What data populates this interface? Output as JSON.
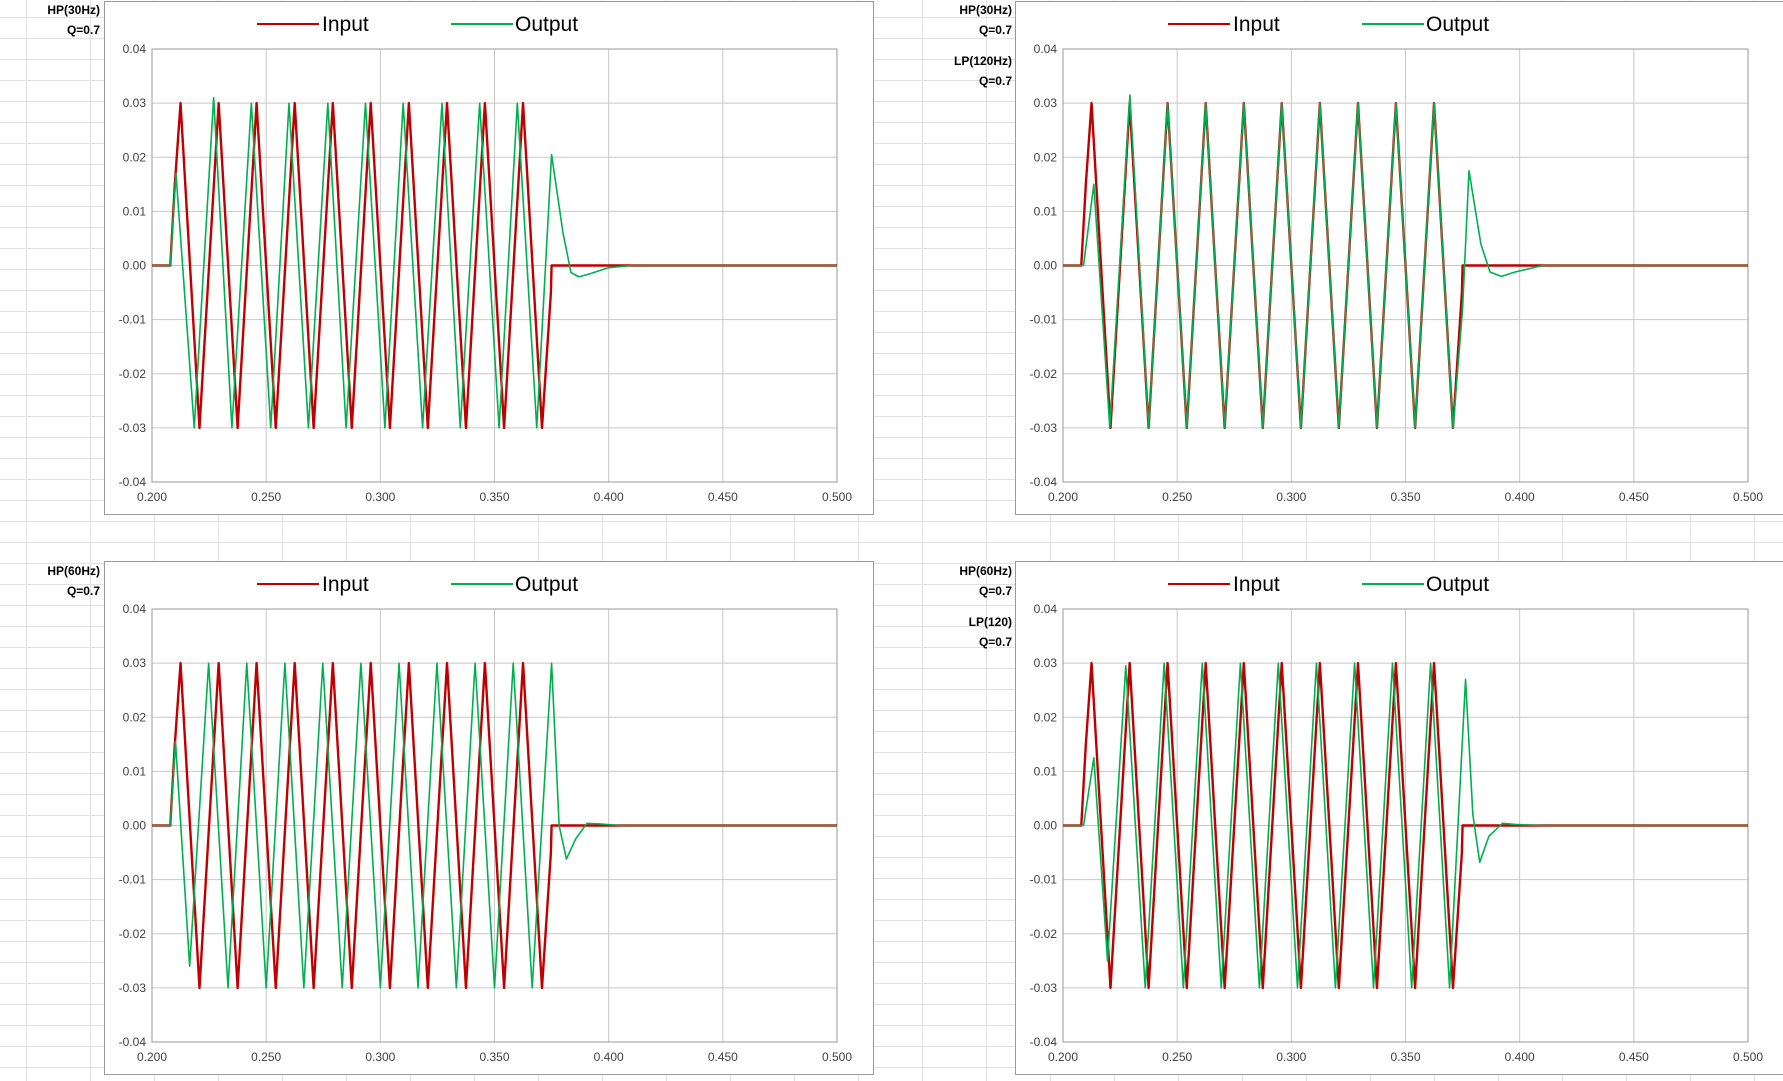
{
  "colors": {
    "input": "#c00000",
    "output": "#00b050",
    "grid": "#c8c8c8",
    "axis": "#9a9a9a"
  },
  "panels": [
    {
      "labels": [
        "HP(30Hz)",
        "Q=0.7"
      ]
    },
    {
      "labels": [
        "HP(30Hz)",
        "Q=0.7",
        "LP(120Hz)",
        "Q=0.7"
      ]
    },
    {
      "labels": [
        "HP(60Hz)",
        "Q=0.7"
      ]
    },
    {
      "labels": [
        "HP(60Hz)",
        "Q=0.7",
        "LP(120)",
        "Q=0.7"
      ]
    }
  ],
  "chart_data": [
    {
      "type": "line",
      "legend": "top",
      "grid": true,
      "xlim": [
        0.2,
        0.5
      ],
      "ylim": [
        -0.04,
        0.04
      ],
      "x_ticks": [
        "0.200",
        "0.250",
        "0.300",
        "0.350",
        "0.400",
        "0.450",
        "0.500"
      ],
      "y_ticks": [
        "0.04",
        "0.03",
        "0.02",
        "0.01",
        "0.00",
        "-0.01",
        "-0.02",
        "-0.03",
        "-0.04"
      ],
      "series": [
        {
          "name": "Input",
          "color": "#c00000",
          "points": [
            [
              0.2,
              0.0
            ],
            [
              0.208,
              0.0
            ],
            [
              0.21,
              0.015
            ],
            [
              0.2125,
              0.03
            ],
            [
              0.2208,
              -0.03
            ],
            [
              0.2292,
              0.03
            ],
            [
              0.2375,
              -0.03
            ],
            [
              0.2458,
              0.03
            ],
            [
              0.2542,
              -0.03
            ],
            [
              0.2625,
              0.03
            ],
            [
              0.2708,
              -0.03
            ],
            [
              0.2792,
              0.03
            ],
            [
              0.2875,
              -0.03
            ],
            [
              0.2958,
              0.03
            ],
            [
              0.3042,
              -0.03
            ],
            [
              0.3125,
              0.03
            ],
            [
              0.3208,
              -0.03
            ],
            [
              0.3292,
              0.03
            ],
            [
              0.3375,
              -0.03
            ],
            [
              0.3458,
              0.03
            ],
            [
              0.3542,
              -0.03
            ],
            [
              0.3625,
              0.03
            ],
            [
              0.3708,
              -0.03
            ],
            [
              0.3747,
              -0.005
            ],
            [
              0.375,
              0.0
            ],
            [
              0.5,
              0.0
            ]
          ]
        },
        {
          "name": "Output",
          "color": "#00b050",
          "points": [
            [
              0.2,
              0.0
            ],
            [
              0.208,
              0.0
            ],
            [
              0.2105,
              0.017
            ],
            [
              0.2185,
              -0.03
            ],
            [
              0.227,
              0.031
            ],
            [
              0.235,
              -0.03
            ],
            [
              0.2435,
              0.03
            ],
            [
              0.252,
              -0.03
            ],
            [
              0.26,
              0.03
            ],
            [
              0.2685,
              -0.03
            ],
            [
              0.277,
              0.03
            ],
            [
              0.285,
              -0.03
            ],
            [
              0.2935,
              0.03
            ],
            [
              0.302,
              -0.03
            ],
            [
              0.31,
              0.03
            ],
            [
              0.3185,
              -0.03
            ],
            [
              0.327,
              0.03
            ],
            [
              0.335,
              -0.03
            ],
            [
              0.3435,
              0.03
            ],
            [
              0.352,
              -0.03
            ],
            [
              0.36,
              0.03
            ],
            [
              0.3685,
              -0.03
            ],
            [
              0.375,
              0.0205
            ],
            [
              0.38,
              0.006
            ],
            [
              0.3835,
              -0.0013
            ],
            [
              0.387,
              -0.0021
            ],
            [
              0.392,
              -0.0015
            ],
            [
              0.4,
              -0.0004
            ],
            [
              0.41,
              0.0
            ],
            [
              0.5,
              0.0
            ]
          ]
        }
      ]
    },
    {
      "type": "line",
      "legend": "top",
      "grid": true,
      "xlim": [
        0.2,
        0.5
      ],
      "ylim": [
        -0.04,
        0.04
      ],
      "x_ticks": [
        "0.200",
        "0.250",
        "0.300",
        "0.350",
        "0.400",
        "0.450",
        "0.500"
      ],
      "y_ticks": [
        "0.04",
        "0.03",
        "0.02",
        "0.01",
        "0.00",
        "-0.01",
        "-0.02",
        "-0.03",
        "-0.04"
      ],
      "series": [
        {
          "name": "Input",
          "color": "#c00000",
          "points": [
            [
              0.2,
              0.0
            ],
            [
              0.208,
              0.0
            ],
            [
              0.21,
              0.015
            ],
            [
              0.2125,
              0.03
            ],
            [
              0.2208,
              -0.03
            ],
            [
              0.2292,
              0.03
            ],
            [
              0.2375,
              -0.03
            ],
            [
              0.2458,
              0.03
            ],
            [
              0.2542,
              -0.03
            ],
            [
              0.2625,
              0.03
            ],
            [
              0.2708,
              -0.03
            ],
            [
              0.2792,
              0.03
            ],
            [
              0.2875,
              -0.03
            ],
            [
              0.2958,
              0.03
            ],
            [
              0.3042,
              -0.03
            ],
            [
              0.3125,
              0.03
            ],
            [
              0.3208,
              -0.03
            ],
            [
              0.3292,
              0.03
            ],
            [
              0.3375,
              -0.03
            ],
            [
              0.3458,
              0.03
            ],
            [
              0.3542,
              -0.03
            ],
            [
              0.3625,
              0.03
            ],
            [
              0.3708,
              -0.03
            ],
            [
              0.3747,
              -0.005
            ],
            [
              0.375,
              0.0
            ],
            [
              0.5,
              0.0
            ]
          ]
        },
        {
          "name": "Output",
          "color": "#00b050",
          "points": [
            [
              0.2,
              0.0
            ],
            [
              0.209,
              0.0
            ],
            [
              0.2135,
              0.015
            ],
            [
              0.2205,
              -0.03
            ],
            [
              0.2293,
              0.0315
            ],
            [
              0.2375,
              -0.03
            ],
            [
              0.2458,
              0.03
            ],
            [
              0.2542,
              -0.03
            ],
            [
              0.2625,
              0.03
            ],
            [
              0.2708,
              -0.03
            ],
            [
              0.2792,
              0.03
            ],
            [
              0.2875,
              -0.03
            ],
            [
              0.2958,
              0.03
            ],
            [
              0.3042,
              -0.03
            ],
            [
              0.3125,
              0.03
            ],
            [
              0.3208,
              -0.03
            ],
            [
              0.3292,
              0.03
            ],
            [
              0.3375,
              -0.03
            ],
            [
              0.3458,
              0.03
            ],
            [
              0.3542,
              -0.03
            ],
            [
              0.3625,
              0.03
            ],
            [
              0.3708,
              -0.03
            ],
            [
              0.375,
              -0.008
            ],
            [
              0.3778,
              0.0175
            ],
            [
              0.383,
              0.004
            ],
            [
              0.387,
              -0.0012
            ],
            [
              0.392,
              -0.002
            ],
            [
              0.398,
              -0.0012
            ],
            [
              0.41,
              0.0
            ],
            [
              0.5,
              0.0
            ]
          ]
        }
      ]
    },
    {
      "type": "line",
      "legend": "top",
      "grid": true,
      "xlim": [
        0.2,
        0.5
      ],
      "ylim": [
        -0.04,
        0.04
      ],
      "x_ticks": [
        "0.200",
        "0.250",
        "0.300",
        "0.350",
        "0.400",
        "0.450",
        "0.500"
      ],
      "y_ticks": [
        "0.04",
        "0.03",
        "0.02",
        "0.01",
        "0.00",
        "-0.01",
        "-0.02",
        "-0.03",
        "-0.04"
      ],
      "series": [
        {
          "name": "Input",
          "color": "#c00000",
          "points": [
            [
              0.2,
              0.0
            ],
            [
              0.208,
              0.0
            ],
            [
              0.21,
              0.015
            ],
            [
              0.2125,
              0.03
            ],
            [
              0.2208,
              -0.03
            ],
            [
              0.2292,
              0.03
            ],
            [
              0.2375,
              -0.03
            ],
            [
              0.2458,
              0.03
            ],
            [
              0.2542,
              -0.03
            ],
            [
              0.2625,
              0.03
            ],
            [
              0.2708,
              -0.03
            ],
            [
              0.2792,
              0.03
            ],
            [
              0.2875,
              -0.03
            ],
            [
              0.2958,
              0.03
            ],
            [
              0.3042,
              -0.03
            ],
            [
              0.3125,
              0.03
            ],
            [
              0.3208,
              -0.03
            ],
            [
              0.3292,
              0.03
            ],
            [
              0.3375,
              -0.03
            ],
            [
              0.3458,
              0.03
            ],
            [
              0.3542,
              -0.03
            ],
            [
              0.3625,
              0.03
            ],
            [
              0.3708,
              -0.03
            ],
            [
              0.3747,
              -0.005
            ],
            [
              0.375,
              0.0
            ],
            [
              0.5,
              0.0
            ]
          ]
        },
        {
          "name": "Output",
          "color": "#00b050",
          "points": [
            [
              0.2,
              0.0
            ],
            [
              0.208,
              0.0
            ],
            [
              0.2103,
              0.0155
            ],
            [
              0.2165,
              -0.026
            ],
            [
              0.2248,
              0.03
            ],
            [
              0.2333,
              -0.03
            ],
            [
              0.2415,
              0.03
            ],
            [
              0.25,
              -0.03
            ],
            [
              0.2582,
              0.03
            ],
            [
              0.2665,
              -0.03
            ],
            [
              0.2748,
              0.03
            ],
            [
              0.2833,
              -0.03
            ],
            [
              0.2915,
              0.03
            ],
            [
              0.3,
              -0.03
            ],
            [
              0.3082,
              0.03
            ],
            [
              0.3165,
              -0.03
            ],
            [
              0.3248,
              0.03
            ],
            [
              0.3333,
              -0.03
            ],
            [
              0.3415,
              0.03
            ],
            [
              0.35,
              -0.03
            ],
            [
              0.3582,
              0.03
            ],
            [
              0.3665,
              -0.03
            ],
            [
              0.375,
              0.03
            ],
            [
              0.3783,
              0.0
            ],
            [
              0.3815,
              -0.0062
            ],
            [
              0.3855,
              -0.0025
            ],
            [
              0.3905,
              0.0004
            ],
            [
              0.396,
              0.0003
            ],
            [
              0.405,
              0.0
            ],
            [
              0.5,
              0.0
            ]
          ]
        }
      ]
    },
    {
      "type": "line",
      "legend": "top",
      "grid": true,
      "xlim": [
        0.2,
        0.5
      ],
      "ylim": [
        -0.04,
        0.04
      ],
      "x_ticks": [
        "0.200",
        "0.250",
        "0.300",
        "0.350",
        "0.400",
        "0.450",
        "0.500"
      ],
      "y_ticks": [
        "0.04",
        "0.03",
        "0.02",
        "0.01",
        "0.00",
        "-0.01",
        "-0.02",
        "-0.03",
        "-0.04"
      ],
      "series": [
        {
          "name": "Input",
          "color": "#c00000",
          "points": [
            [
              0.2,
              0.0
            ],
            [
              0.208,
              0.0
            ],
            [
              0.21,
              0.015
            ],
            [
              0.2125,
              0.03
            ],
            [
              0.2208,
              -0.03
            ],
            [
              0.2292,
              0.03
            ],
            [
              0.2375,
              -0.03
            ],
            [
              0.2458,
              0.03
            ],
            [
              0.2542,
              -0.03
            ],
            [
              0.2625,
              0.03
            ],
            [
              0.2708,
              -0.03
            ],
            [
              0.2792,
              0.03
            ],
            [
              0.2875,
              -0.03
            ],
            [
              0.2958,
              0.03
            ],
            [
              0.3042,
              -0.03
            ],
            [
              0.3125,
              0.03
            ],
            [
              0.3208,
              -0.03
            ],
            [
              0.3292,
              0.03
            ],
            [
              0.3375,
              -0.03
            ],
            [
              0.3458,
              0.03
            ],
            [
              0.3542,
              -0.03
            ],
            [
              0.3625,
              0.03
            ],
            [
              0.3708,
              -0.03
            ],
            [
              0.3747,
              -0.005
            ],
            [
              0.375,
              0.0
            ],
            [
              0.5,
              0.0
            ]
          ]
        },
        {
          "name": "Output",
          "color": "#00b050",
          "points": [
            [
              0.2,
              0.0
            ],
            [
              0.209,
              0.0
            ],
            [
              0.2135,
              0.0125
            ],
            [
              0.2195,
              -0.025
            ],
            [
              0.2275,
              0.0295
            ],
            [
              0.236,
              -0.03
            ],
            [
              0.2443,
              0.03
            ],
            [
              0.2527,
              -0.03
            ],
            [
              0.261,
              0.03
            ],
            [
              0.2693,
              -0.03
            ],
            [
              0.2777,
              0.03
            ],
            [
              0.286,
              -0.03
            ],
            [
              0.2943,
              0.03
            ],
            [
              0.3027,
              -0.03
            ],
            [
              0.311,
              0.03
            ],
            [
              0.3193,
              -0.03
            ],
            [
              0.3277,
              0.03
            ],
            [
              0.336,
              -0.03
            ],
            [
              0.3443,
              0.03
            ],
            [
              0.3527,
              -0.03
            ],
            [
              0.361,
              0.03
            ],
            [
              0.3693,
              -0.03
            ],
            [
              0.3763,
              0.027
            ],
            [
              0.3795,
              0.002
            ],
            [
              0.3825,
              -0.0068
            ],
            [
              0.3865,
              -0.002
            ],
            [
              0.3925,
              0.0004
            ],
            [
              0.398,
              0.0002
            ],
            [
              0.41,
              0.0
            ],
            [
              0.5,
              0.0
            ]
          ]
        }
      ]
    }
  ]
}
